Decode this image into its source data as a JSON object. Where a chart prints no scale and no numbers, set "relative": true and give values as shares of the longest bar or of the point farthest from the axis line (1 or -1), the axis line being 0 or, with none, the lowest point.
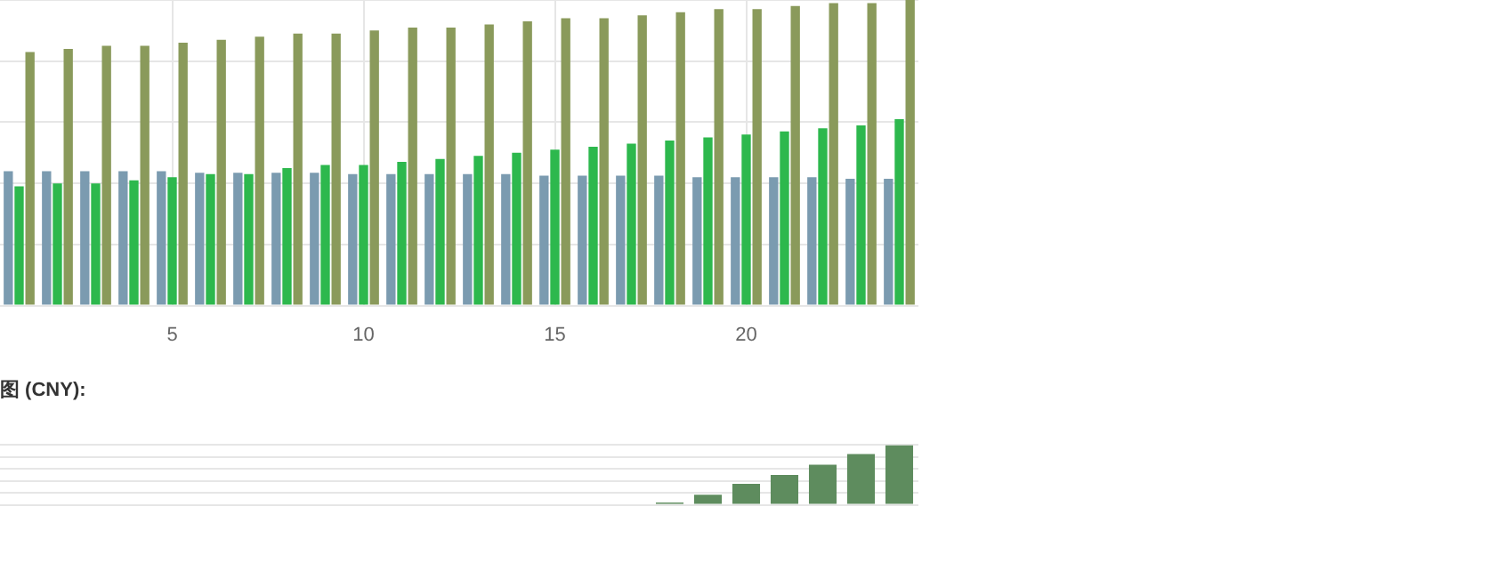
{
  "chart_data": [
    {
      "type": "bar",
      "relative": true,
      "grid": true,
      "legend": false,
      "categories": [
        null,
        null,
        null,
        null,
        "5",
        null,
        null,
        null,
        null,
        "10",
        null,
        null,
        null,
        null,
        "15",
        null,
        null,
        null,
        null,
        "20",
        null,
        null,
        null,
        null
      ],
      "series": [
        {
          "color": "#7b9bb0",
          "values": [
            0.44,
            0.44,
            0.44,
            0.44,
            0.44,
            0.435,
            0.435,
            0.435,
            0.435,
            0.43,
            0.43,
            0.43,
            0.43,
            0.43,
            0.425,
            0.425,
            0.425,
            0.425,
            0.42,
            0.42,
            0.42,
            0.42,
            0.415,
            0.415
          ]
        },
        {
          "color": "#2db84d",
          "values": [
            0.39,
            0.4,
            0.4,
            0.41,
            0.42,
            0.43,
            0.43,
            0.45,
            0.46,
            0.46,
            0.47,
            0.48,
            0.49,
            0.5,
            0.51,
            0.52,
            0.53,
            0.54,
            0.55,
            0.56,
            0.57,
            0.58,
            0.59,
            0.61
          ]
        },
        {
          "color": "#8a9a5b",
          "values": [
            0.83,
            0.84,
            0.85,
            0.85,
            0.86,
            0.87,
            0.88,
            0.89,
            0.89,
            0.9,
            0.91,
            0.91,
            0.92,
            0.93,
            0.94,
            0.94,
            0.95,
            0.96,
            0.97,
            0.97,
            0.98,
            0.99,
            0.99,
            1
          ]
        }
      ]
    },
    {
      "type": "bar",
      "relative": true,
      "grid": true,
      "legend": false,
      "title": "图 (CNY):",
      "categories": [
        null,
        null,
        null,
        null,
        null,
        null,
        null,
        null,
        null,
        null,
        null,
        null,
        null,
        null,
        null,
        null,
        null,
        null,
        null,
        null,
        null,
        null,
        null,
        null
      ],
      "series": [
        {
          "color": "#5e8c5e",
          "values": [
            null,
            null,
            null,
            null,
            null,
            null,
            null,
            null,
            null,
            null,
            null,
            null,
            null,
            null,
            null,
            null,
            null,
            0.04,
            0.17,
            0.35,
            0.5,
            0.67,
            0.85,
            1
          ]
        }
      ]
    }
  ]
}
